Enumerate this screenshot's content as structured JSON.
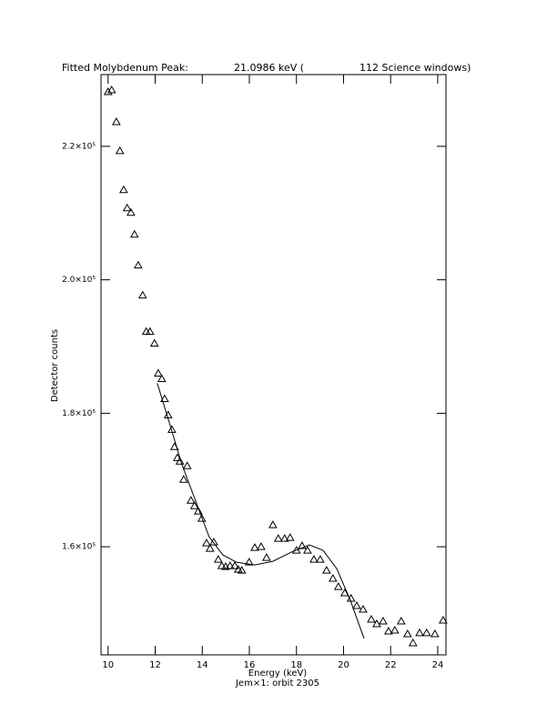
{
  "chart_data": {
    "type": "scatter",
    "title_parts": [
      "Fitted Molybdenum Peak:",
      "21.0986 keV (",
      "112 Science windows)"
    ],
    "x_label": "Energy (keV)",
    "y_label": "Detector counts",
    "footer": "Jem×1: orbit 2305",
    "xlim": [
      9.7,
      24.35
    ],
    "ylim": [
      143800,
      230750
    ],
    "xticks": [
      10,
      12,
      14,
      16,
      18,
      20,
      22,
      24
    ],
    "yticks": [
      {
        "value": 160000,
        "label": "1.6×10⁵"
      },
      {
        "value": 180000,
        "label": "1.8×10⁵"
      },
      {
        "value": 200000,
        "label": "2.0×10⁵"
      },
      {
        "value": 220000,
        "label": "2.2×10⁵"
      }
    ],
    "series": [
      {
        "color": "#000000",
        "marker": "triangle",
        "x": [
          10.0,
          10.15,
          10.35,
          10.5,
          10.66,
          10.81,
          10.97,
          11.12,
          11.28,
          11.47,
          11.62,
          11.78,
          11.97,
          12.13,
          12.28,
          12.4,
          12.55,
          12.71,
          12.82,
          12.94,
          13.05,
          13.21,
          13.36,
          13.52,
          13.67,
          13.83,
          13.98,
          14.18,
          14.33,
          14.49,
          14.68,
          14.83,
          14.99,
          15.18,
          15.38,
          15.53,
          15.68,
          15.99,
          16.23,
          16.5,
          16.73,
          17.0,
          17.23,
          17.5,
          17.73,
          18.0,
          18.24,
          18.47,
          18.74,
          19.01,
          19.28,
          19.55,
          19.78,
          20.05,
          20.32,
          20.56,
          20.83,
          21.18,
          21.41,
          21.68,
          21.91,
          22.18,
          22.45,
          22.72,
          22.95,
          23.23,
          23.53,
          23.88,
          24.23
        ],
        "values": [
          228160,
          228430,
          223670,
          219320,
          213470,
          210750,
          210070,
          206800,
          202180,
          197690,
          192240,
          192240,
          190470,
          185980,
          185170,
          182170,
          179720,
          177550,
          174970,
          173330,
          172790,
          170070,
          172110,
          166940,
          166120,
          165310,
          164220,
          160540,
          159730,
          160680,
          158100,
          157140,
          157010,
          157140,
          157140,
          156600,
          156460,
          157690,
          159860,
          160000,
          158370,
          163270,
          161220,
          161220,
          161360,
          159460,
          160140,
          159460,
          158100,
          158100,
          156460,
          155240,
          154010,
          153060,
          152250,
          151160,
          150610,
          149120,
          148440,
          148840,
          147350,
          147480,
          148840,
          146940,
          145580,
          147080,
          147080,
          146940,
          148980
        ]
      },
      {
        "color": "#000000",
        "marker": "line",
        "x": [
          12.09,
          12.55,
          13.13,
          13.71,
          14.29,
          14.87,
          15.45,
          16.23,
          17.0,
          17.77,
          18.55,
          19.13,
          19.71,
          20.29,
          20.87
        ],
        "values": [
          184490,
          179180,
          172380,
          166940,
          161500,
          158780,
          157690,
          157280,
          157820,
          159180,
          160270,
          159460,
          156730,
          151970,
          146260
        ]
      }
    ]
  }
}
